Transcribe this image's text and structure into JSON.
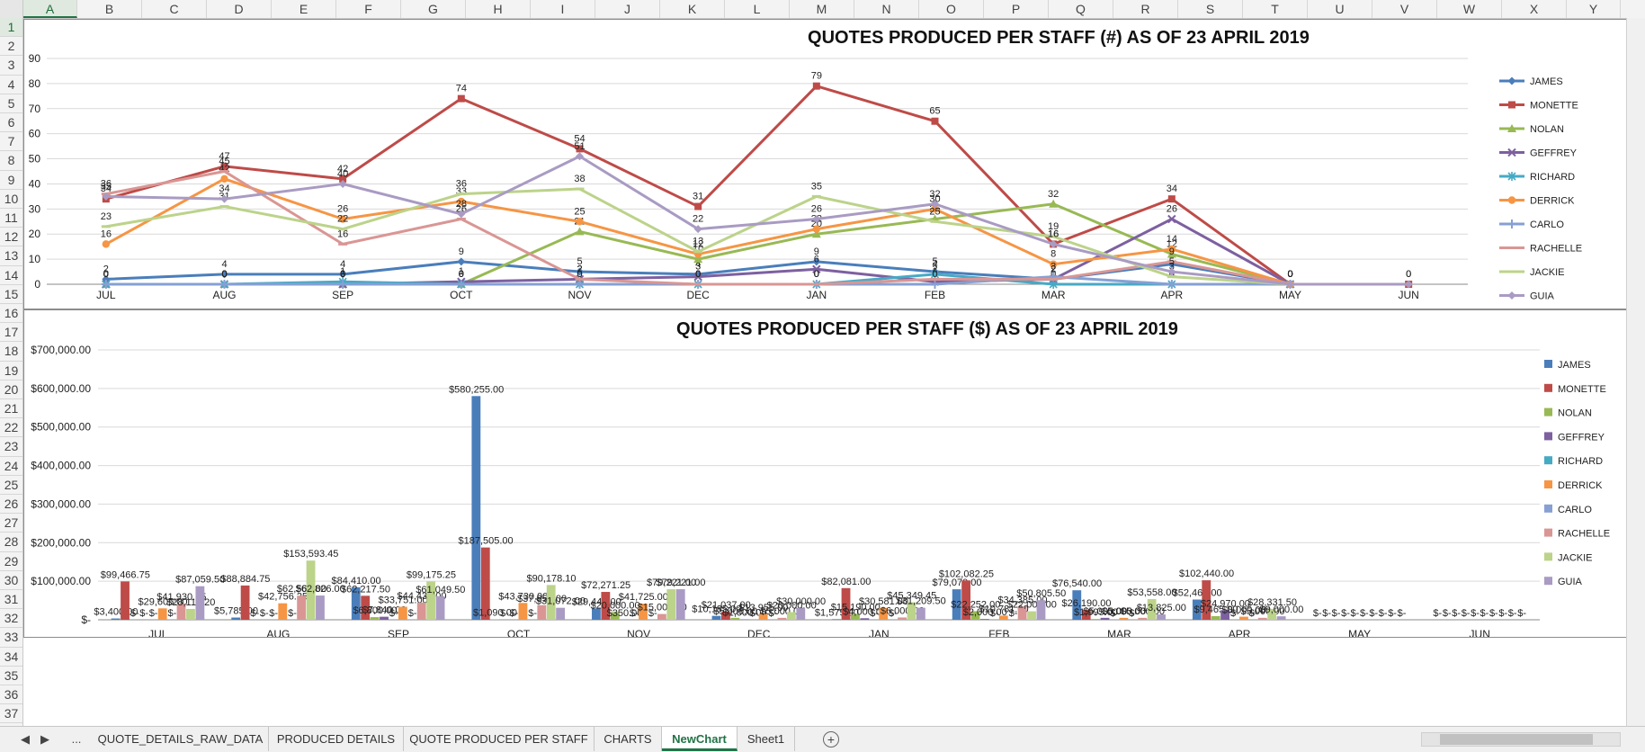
{
  "sheet": {
    "column_headers": [
      "A",
      "B",
      "C",
      "D",
      "E",
      "F",
      "G",
      "H",
      "I",
      "J",
      "K",
      "L",
      "M",
      "N",
      "O",
      "P",
      "Q",
      "R",
      "S",
      "T",
      "U",
      "V",
      "W",
      "X",
      "Y"
    ],
    "row_headers": [
      "1",
      "2",
      "3",
      "4",
      "5",
      "6",
      "7",
      "8",
      "9",
      "10",
      "11",
      "12",
      "13",
      "14",
      "15",
      "16",
      "17",
      "18",
      "19",
      "20",
      "21",
      "22",
      "23",
      "24",
      "25",
      "26",
      "27",
      "28",
      "29",
      "30",
      "31",
      "32",
      "33",
      "34",
      "35",
      "36",
      "37"
    ],
    "selected_cell": "A1"
  },
  "tabs": {
    "nav_prev": "◀",
    "nav_next": "▶",
    "ellipsis": "...",
    "items": [
      "QUOTE_DETAILS_RAW_DATA",
      "PRODUCED DETAILS",
      "QUOTE PRODUCED PER STAFF",
      "CHARTS",
      "NewChart",
      "Sheet1"
    ],
    "active": "NewChart",
    "add_label": "+"
  },
  "colors": {
    "JAMES": "#4a7ebb",
    "MONETTE": "#be4b48",
    "NOLAN": "#98b954",
    "GEFFREY": "#7d60a0",
    "RICHARD": "#46aac5",
    "DERRICK": "#f69544",
    "CARLO": "#86a0d4",
    "RACHELLE": "#d99694",
    "JACKIE": "#bcd38a",
    "GUIA": "#a99bc3",
    "accent": "#217346"
  },
  "chart_data": [
    {
      "type": "line",
      "title": "QUOTES PRODUCED PER STAFF (#) AS OF 23 APRIL 2019",
      "categories": [
        "JUL",
        "AUG",
        "SEP",
        "OCT",
        "NOV",
        "DEC",
        "JAN",
        "FEB",
        "MAR",
        "APR",
        "MAY",
        "JUN"
      ],
      "ylim": [
        0,
        90
      ],
      "yticks": [
        0,
        10,
        20,
        30,
        40,
        50,
        60,
        70,
        80,
        90
      ],
      "legend_position": "right",
      "grid": true,
      "series": [
        {
          "name": "JAMES",
          "values": [
            2,
            4,
            4,
            9,
            5,
            4,
            9,
            5,
            2,
            8,
            0,
            null
          ]
        },
        {
          "name": "MONETTE",
          "values": [
            34,
            47,
            42,
            74,
            54,
            31,
            79,
            65,
            16,
            34,
            0,
            0
          ]
        },
        {
          "name": "NOLAN",
          "values": [
            0,
            0,
            0,
            0,
            21,
            10,
            20,
            26,
            32,
            12,
            0,
            null
          ]
        },
        {
          "name": "GEFFREY",
          "values": [
            0,
            0,
            0,
            1,
            2,
            3,
            6,
            1,
            2,
            26,
            0,
            null
          ]
        },
        {
          "name": "RICHARD",
          "values": [
            0,
            0,
            1,
            0,
            0,
            0,
            0,
            4,
            0,
            0,
            0,
            null
          ]
        },
        {
          "name": "DERRICK",
          "values": [
            16,
            42,
            26,
            33,
            25,
            12,
            22,
            30,
            8,
            14,
            0,
            null
          ]
        },
        {
          "name": "CARLO",
          "values": [
            0,
            0,
            0,
            0,
            0,
            0,
            0,
            0,
            3,
            0,
            0,
            null
          ]
        },
        {
          "name": "RACHELLE",
          "values": [
            36,
            45,
            16,
            26,
            2,
            0,
            0,
            2,
            2,
            9,
            0,
            null
          ]
        },
        {
          "name": "JACKIE",
          "values": [
            23,
            31,
            22,
            36,
            38,
            13,
            35,
            25,
            19,
            3,
            0,
            null
          ]
        },
        {
          "name": "GUIA",
          "values": [
            35,
            34,
            40,
            28,
            51,
            22,
            26,
            32,
            16,
            5,
            0,
            0
          ]
        }
      ]
    },
    {
      "type": "bar",
      "title": "QUOTES PRODUCED PER STAFF ($) AS OF 23 APRIL 2019",
      "categories": [
        "JUL",
        "AUG",
        "SEP",
        "OCT",
        "NOV",
        "DEC",
        "JAN",
        "FEB",
        "MAR",
        "APR",
        "MAY",
        "JUN"
      ],
      "ylim": [
        0,
        700000
      ],
      "yticks": [
        0,
        100000,
        200000,
        300000,
        400000,
        500000,
        600000,
        700000
      ],
      "ytick_labels": [
        "$-",
        "$100,000.00",
        "$200,000.00",
        "$300,000.00",
        "$400,000.00",
        "$500,000.00",
        "$600,000.00",
        "$700,000.00"
      ],
      "legend_position": "right",
      "grid": true,
      "series": [
        {
          "name": "JAMES",
          "values": [
            3400,
            5785,
            84410,
            580255,
            29445,
            10185,
            1575,
            79070,
            76540,
            52460,
            0,
            0
          ]
        },
        {
          "name": "MONETTE",
          "values": [
            99466.75,
            88884.75,
            62217.5,
            187505,
            72271.25,
            21037,
            82081,
            102082.25,
            26190,
            102440,
            0,
            0
          ]
        },
        {
          "name": "NOLAN",
          "values": [
            0,
            0,
            6800,
            1090,
            20000,
            5000,
            15190,
            22252,
            1995,
            9465,
            0,
            0
          ]
        },
        {
          "name": "GEFFREY",
          "values": [
            0,
            0,
            7840,
            0,
            350,
            1000,
            4000,
            2000,
            5000,
            24970,
            0,
            0
          ]
        },
        {
          "name": "RICHARD",
          "values": [
            0,
            0,
            0,
            0,
            0,
            0,
            0,
            0,
            0,
            0,
            0,
            0
          ]
        },
        {
          "name": "DERRICK",
          "values": [
            29605,
            42756.25,
            33751,
            43730,
            41725,
            13955,
            30581,
            10781,
            5000,
            8000,
            0,
            0
          ]
        },
        {
          "name": "CARLO",
          "values": [
            0,
            0,
            0,
            0,
            0,
            0,
            0,
            0,
            0,
            0,
            0,
            0
          ]
        },
        {
          "name": "RACHELLE",
          "values": [
            41930.25,
            62563,
            44433,
            37856,
            15000,
            5000,
            6000,
            34385,
            5000,
            5000,
            0,
            0
          ]
        },
        {
          "name": "JACKIE",
          "values": [
            28117.2,
            153593.45,
            99175.25,
            90178.1,
            79221,
            20000,
            45349.45,
            22000,
            53558,
            28331.5,
            0,
            0
          ]
        },
        {
          "name": "GUIA",
          "values": [
            87059.5,
            62826,
            61049.5,
            31072,
            79221,
            30000,
            31209.5,
            50805.5,
            13825,
            9000,
            0,
            0
          ]
        }
      ]
    }
  ]
}
